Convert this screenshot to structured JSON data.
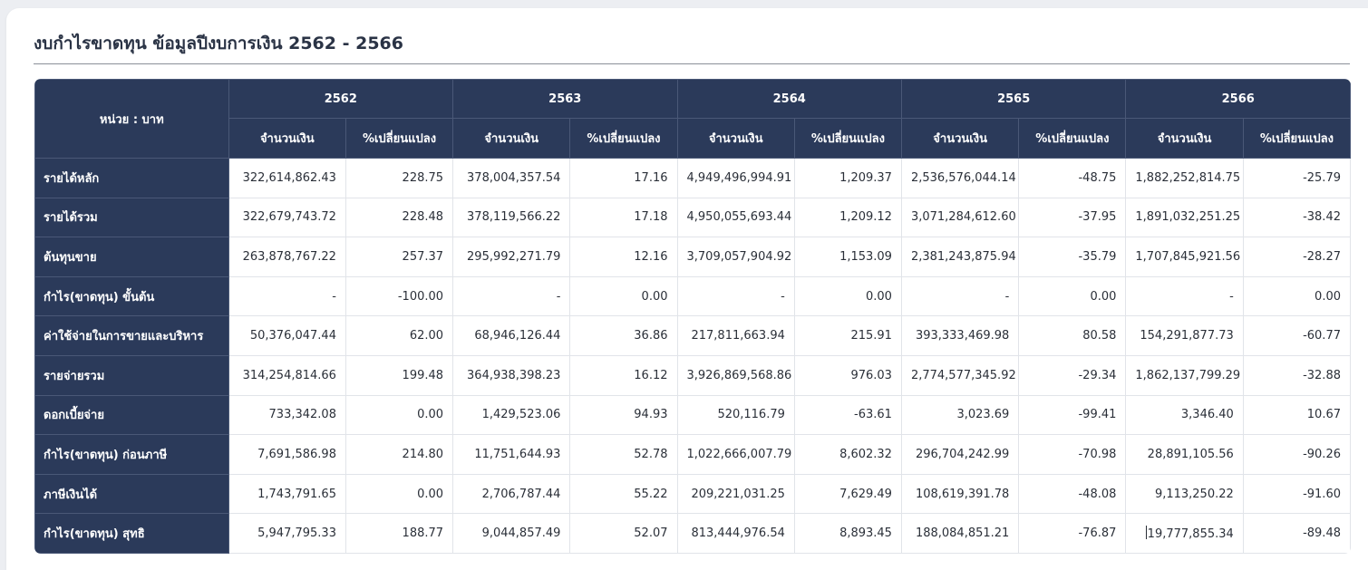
{
  "title": "งบกำไรขาดทุน ข้อมูลปีงบการเงิน 2562 - 2566",
  "unit_label": "หน่วย : บาท",
  "years": [
    "2562",
    "2563",
    "2564",
    "2565",
    "2566"
  ],
  "subheaders": {
    "amount": "จำนวนเงิน",
    "change": "%เปลี่ยนแปลง"
  },
  "rows": [
    {
      "label": "รายได้หลัก",
      "values": [
        "322,614,862.43",
        "228.75",
        "378,004,357.54",
        "17.16",
        "4,949,496,994.91",
        "1,209.37",
        "2,536,576,044.14",
        "-48.75",
        "1,882,252,814.75",
        "-25.79"
      ]
    },
    {
      "label": "รายได้รวม",
      "values": [
        "322,679,743.72",
        "228.48",
        "378,119,566.22",
        "17.18",
        "4,950,055,693.44",
        "1,209.12",
        "3,071,284,612.60",
        "-37.95",
        "1,891,032,251.25",
        "-38.42"
      ]
    },
    {
      "label": "ต้นทุนขาย",
      "values": [
        "263,878,767.22",
        "257.37",
        "295,992,271.79",
        "12.16",
        "3,709,057,904.92",
        "1,153.09",
        "2,381,243,875.94",
        "-35.79",
        "1,707,845,921.56",
        "-28.27"
      ]
    },
    {
      "label": "กำไร(ขาดทุน) ขั้นต้น",
      "values": [
        "-",
        "-100.00",
        "-",
        "0.00",
        "-",
        "0.00",
        "-",
        "0.00",
        "-",
        "0.00"
      ]
    },
    {
      "label": "ค่าใช้จ่ายในการขายและบริหาร",
      "values": [
        "50,376,047.44",
        "62.00",
        "68,946,126.44",
        "36.86",
        "217,811,663.94",
        "215.91",
        "393,333,469.98",
        "80.58",
        "154,291,877.73",
        "-60.77"
      ]
    },
    {
      "label": "รายจ่ายรวม",
      "values": [
        "314,254,814.66",
        "199.48",
        "364,938,398.23",
        "16.12",
        "3,926,869,568.86",
        "976.03",
        "2,774,577,345.92",
        "-29.34",
        "1,862,137,799.29",
        "-32.88"
      ]
    },
    {
      "label": "ดอกเบี้ยจ่าย",
      "values": [
        "733,342.08",
        "0.00",
        "1,429,523.06",
        "94.93",
        "520,116.79",
        "-63.61",
        "3,023.69",
        "-99.41",
        "3,346.40",
        "10.67"
      ]
    },
    {
      "label": "กำไร(ขาดทุน) ก่อนภาษี",
      "values": [
        "7,691,586.98",
        "214.80",
        "11,751,644.93",
        "52.78",
        "1,022,666,007.79",
        "8,602.32",
        "296,704,242.99",
        "-70.98",
        "28,891,105.56",
        "-90.26"
      ]
    },
    {
      "label": "ภาษีเงินได้",
      "values": [
        "1,743,791.65",
        "0.00",
        "2,706,787.44",
        "55.22",
        "209,221,031.25",
        "7,629.49",
        "108,619,391.78",
        "-48.08",
        "9,113,250.22",
        "-91.60"
      ]
    },
    {
      "label": "กำไร(ขาดทุน) สุทธิ",
      "values": [
        "5,947,795.33",
        "188.77",
        "9,044,857.49",
        "52.07",
        "813,444,976.54",
        "8,893.45",
        "188,084,851.21",
        "-76.87",
        "19,777,855.34",
        "-89.48"
      ]
    }
  ],
  "colors": {
    "header_bg": "#2b3a5a",
    "header_text": "#ffffff",
    "title_text": "#2a3345",
    "page_bg": "#eceef2"
  }
}
